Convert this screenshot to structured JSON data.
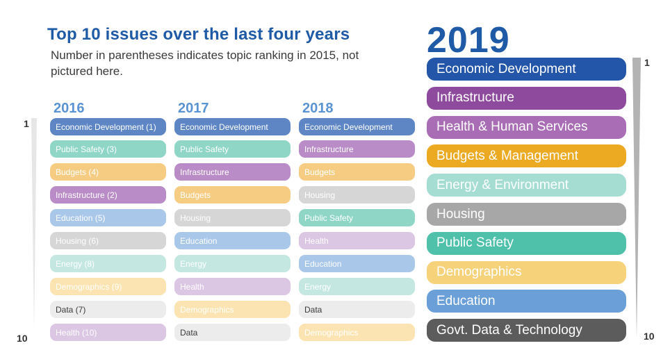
{
  "header": {
    "title": "Top 10 issues over the last four years",
    "subtitle": "Number in parentheses indicates topic ranking in 2015, not pictured here."
  },
  "rank_scale": {
    "top": "1",
    "bottom": "10"
  },
  "colors": {
    "economic": "#5e86c4",
    "economic_2019": "#2356a8",
    "public_safety": "#8fd6c7",
    "budgets": "#f6cc83",
    "infrastructure": "#b98cc8",
    "education": "#a9c7e8",
    "housing": "#d6d6d6",
    "energy": "#c4e8e1",
    "demographics": "#fbe4b1",
    "data": "#ececec",
    "health": "#dbc6e3"
  },
  "chart_data": {
    "type": "table",
    "columns": [
      {
        "year": "2016",
        "items": [
          {
            "label": "Economic Development (1)",
            "topic": "economic"
          },
          {
            "label": "Public Safety (3)",
            "topic": "public_safety"
          },
          {
            "label": "Budgets (4)",
            "topic": "budgets"
          },
          {
            "label": "Infrastructure (2)",
            "topic": "infrastructure"
          },
          {
            "label": "Education (5)",
            "topic": "education"
          },
          {
            "label": "Housing (6)",
            "topic": "housing"
          },
          {
            "label": "Energy (8)",
            "topic": "energy"
          },
          {
            "label": "Demographics (9)",
            "topic": "demographics"
          },
          {
            "label": "Data (7)",
            "topic": "data"
          },
          {
            "label": "Health (10)",
            "topic": "health"
          }
        ]
      },
      {
        "year": "2017",
        "items": [
          {
            "label": "Economic Development",
            "topic": "economic"
          },
          {
            "label": "Public Safety",
            "topic": "public_safety"
          },
          {
            "label": "Infrastructure",
            "topic": "infrastructure"
          },
          {
            "label": "Budgets",
            "topic": "budgets"
          },
          {
            "label": "Housing",
            "topic": "housing"
          },
          {
            "label": "Education",
            "topic": "education"
          },
          {
            "label": "Energy",
            "topic": "energy"
          },
          {
            "label": "Health",
            "topic": "health"
          },
          {
            "label": "Demographics",
            "topic": "demographics"
          },
          {
            "label": "Data",
            "topic": "data"
          }
        ]
      },
      {
        "year": "2018",
        "items": [
          {
            "label": "Economic Development",
            "topic": "economic"
          },
          {
            "label": "Infrastructure",
            "topic": "infrastructure"
          },
          {
            "label": "Budgets",
            "topic": "budgets"
          },
          {
            "label": "Housing",
            "topic": "housing"
          },
          {
            "label": "Public Safety",
            "topic": "public_safety"
          },
          {
            "label": "Health",
            "topic": "health"
          },
          {
            "label": "Education",
            "topic": "education"
          },
          {
            "label": "Energy",
            "topic": "energy"
          },
          {
            "label": "Data",
            "topic": "data"
          },
          {
            "label": "Demographics",
            "topic": "demographics"
          }
        ]
      }
    ],
    "year_2019": {
      "year": "2019",
      "items": [
        {
          "label": "Economic Development",
          "color": "#2356a8"
        },
        {
          "label": "Infrastructure",
          "color": "#8e4a9c"
        },
        {
          "label": "Health & Human Services",
          "color": "#a96db5"
        },
        {
          "label": "Budgets & Management",
          "color": "#ecaa22"
        },
        {
          "label": "Energy & Environment",
          "color": "#a6ddd3"
        },
        {
          "label": "Housing",
          "color": "#a7a7a7"
        },
        {
          "label": "Public Safety",
          "color": "#4fc1ab"
        },
        {
          "label": "Demographics",
          "color": "#f6d27a"
        },
        {
          "label": "Education",
          "color": "#6a9fd8"
        },
        {
          "label": "Govt. Data & Technology",
          "color": "#5c5c5c"
        }
      ]
    }
  }
}
